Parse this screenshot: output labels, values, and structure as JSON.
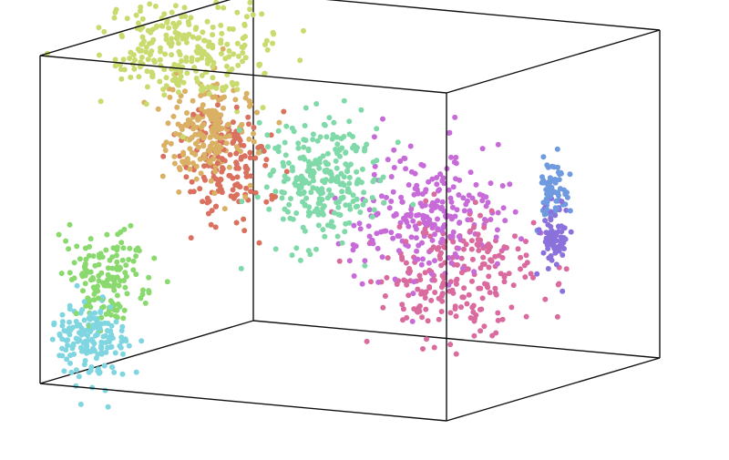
{
  "chart_data": {
    "type": "scatter",
    "projection": "3d",
    "title": "",
    "box": "visible",
    "axes_labels": "none",
    "tick_labels": "none",
    "legend": "none",
    "grid": false,
    "colors": {
      "lime": "#c9db6e",
      "tan": "#d9b064",
      "salmon": "#d9715e",
      "mint": "#7fd9a8",
      "green": "#8ad96e",
      "cyan": "#7fd6e0",
      "orchid": "#c76bd9",
      "pink": "#d96b9e",
      "blue": "#6f9ae0",
      "violet": "#8b71db",
      "box_line": "#111111"
    },
    "series": [
      {
        "color": "#c9db6e",
        "center": [
          0.8,
          0.3,
          0.98
        ],
        "spread": [
          0.1,
          0.06,
          0.08
        ],
        "count": 260
      },
      {
        "color": "#d9b064",
        "center": [
          0.78,
          0.38,
          0.72
        ],
        "spread": [
          0.05,
          0.05,
          0.08
        ],
        "count": 200
      },
      {
        "color": "#d9715e",
        "center": [
          0.78,
          0.46,
          0.6
        ],
        "spread": [
          0.05,
          0.05,
          0.09
        ],
        "count": 170
      },
      {
        "color": "#7fd9a8",
        "center": [
          0.55,
          0.45,
          0.58
        ],
        "spread": [
          0.06,
          0.07,
          0.09
        ],
        "count": 270
      },
      {
        "color": "#8ad96e",
        "center": [
          0.86,
          0.05,
          0.32
        ],
        "spread": [
          0.04,
          0.04,
          0.07
        ],
        "count": 150
      },
      {
        "color": "#7fd6e0",
        "center": [
          0.88,
          0.0,
          0.15
        ],
        "spread": [
          0.04,
          0.04,
          0.06
        ],
        "count": 160
      },
      {
        "color": "#c76bd9",
        "center": [
          0.4,
          0.68,
          0.45
        ],
        "spread": [
          0.08,
          0.1,
          0.1
        ],
        "count": 240
      },
      {
        "color": "#d96b9e",
        "center": [
          0.35,
          0.7,
          0.27
        ],
        "spread": [
          0.08,
          0.1,
          0.1
        ],
        "count": 230
      },
      {
        "color": "#6f9ae0",
        "center": [
          0.05,
          0.6,
          0.58
        ],
        "spread": [
          0.012,
          0.02,
          0.05
        ],
        "count": 70
      },
      {
        "color": "#8b71db",
        "center": [
          0.05,
          0.6,
          0.43
        ],
        "spread": [
          0.012,
          0.02,
          0.05
        ],
        "count": 70
      }
    ]
  }
}
